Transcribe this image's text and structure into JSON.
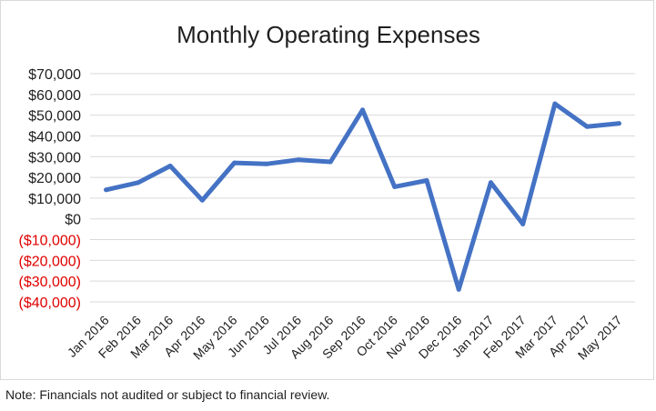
{
  "chart_data": {
    "type": "line",
    "title": "Monthly Operating Expenses",
    "xlabel": "",
    "ylabel": "",
    "categories": [
      "Jan 2016",
      "Feb 2016",
      "Mar 2016",
      "Apr 2016",
      "May 2016",
      "Jun 2016",
      "Jul 2016",
      "Aug 2016",
      "Sep 2016",
      "Oct 2016",
      "Nov 2016",
      "Dec 2016",
      "Jan 2017",
      "Feb 2017",
      "Mar 2017",
      "Apr 2017",
      "May 2017"
    ],
    "values": [
      14000,
      17500,
      25500,
      9000,
      27000,
      26500,
      28500,
      27500,
      52500,
      15500,
      18500,
      -34000,
      17500,
      -2500,
      55500,
      44500,
      46000
    ],
    "ylim": [
      -40000,
      70000
    ],
    "yticks": [
      70000,
      60000,
      50000,
      40000,
      30000,
      20000,
      10000,
      0,
      -10000,
      -20000,
      -30000,
      -40000
    ],
    "ytick_labels": [
      "$70,000",
      "$60,000",
      "$50,000",
      "$40,000",
      "$30,000",
      "$20,000",
      "$10,000",
      "$0",
      "($10,000)",
      "($20,000)",
      "($30,000)",
      "($40,000)"
    ],
    "grid": true,
    "legend": "none",
    "colors": {
      "line": "#4472c4",
      "positive_tick": "#1f1f1f",
      "negative_tick": "#e00000"
    }
  },
  "footnote": "Note: Financials not audited or subject to financial review."
}
